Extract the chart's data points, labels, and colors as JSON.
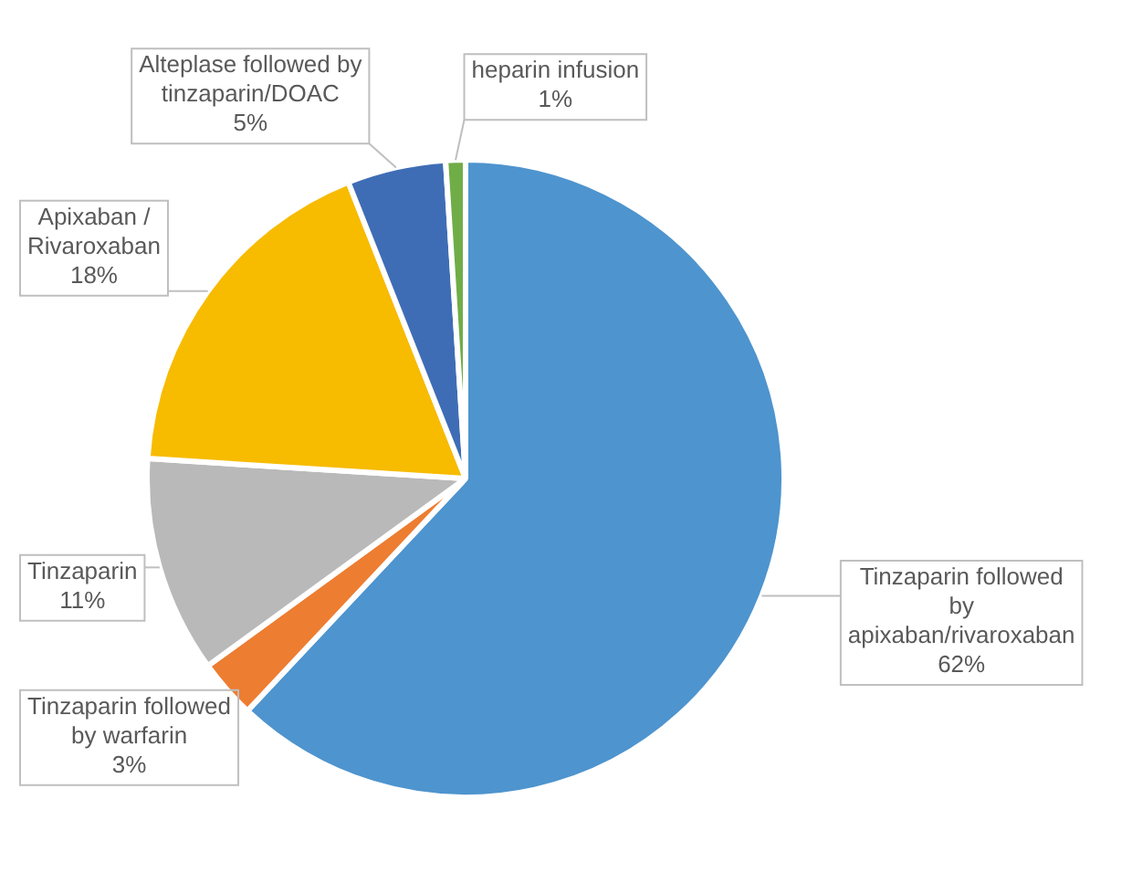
{
  "chart_data": {
    "type": "pie",
    "categories": [
      "Tinzaparin followed by apixaban/rivaroxaban",
      "Tinzaparin followed by warfarin",
      "Tinzaparin",
      "Apixaban / Rivaroxaban",
      "Alteplase followed by tinzaparin/DOAC",
      "heparin infusion"
    ],
    "values": [
      62,
      3,
      11,
      18,
      5,
      1
    ],
    "value_labels": [
      "62%",
      "3%",
      "11%",
      "18%",
      "5%",
      "1%"
    ],
    "colors": [
      "#4e94ce",
      "#ed7d31",
      "#b9b9b9",
      "#f7bb00",
      "#3f6db5",
      "#70ad47"
    ],
    "legend": false
  }
}
